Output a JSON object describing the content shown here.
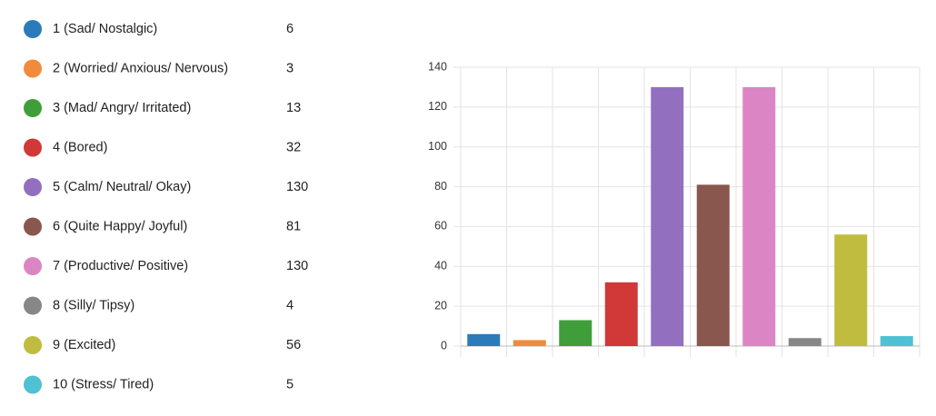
{
  "chart_data": {
    "type": "bar",
    "categories": [
      "1 (Sad/ Nostalgic)",
      "2 (Worried/ Anxious/ Nervous)",
      "3 (Mad/ Angry/ Irritated)",
      "4 (Bored)",
      "5 (Calm/ Neutral/ Okay)",
      "6 (Quite Happy/ Joyful)",
      "7 (Productive/ Positive)",
      "8 (Silly/ Tipsy)",
      "9 (Excited)",
      "10 (Stress/ Tired)"
    ],
    "values": [
      6,
      3,
      13,
      32,
      130,
      81,
      130,
      4,
      56,
      5
    ],
    "colors": [
      "#2b7bba",
      "#f28a3c",
      "#3f9e3a",
      "#d13838",
      "#9270bf",
      "#8a574e",
      "#db85c4",
      "#878787",
      "#bfbc3f",
      "#4ec1d4"
    ],
    "ylim": [
      0,
      140
    ],
    "yticks": [
      0,
      20,
      40,
      60,
      80,
      100,
      120,
      140
    ],
    "grid": true
  }
}
